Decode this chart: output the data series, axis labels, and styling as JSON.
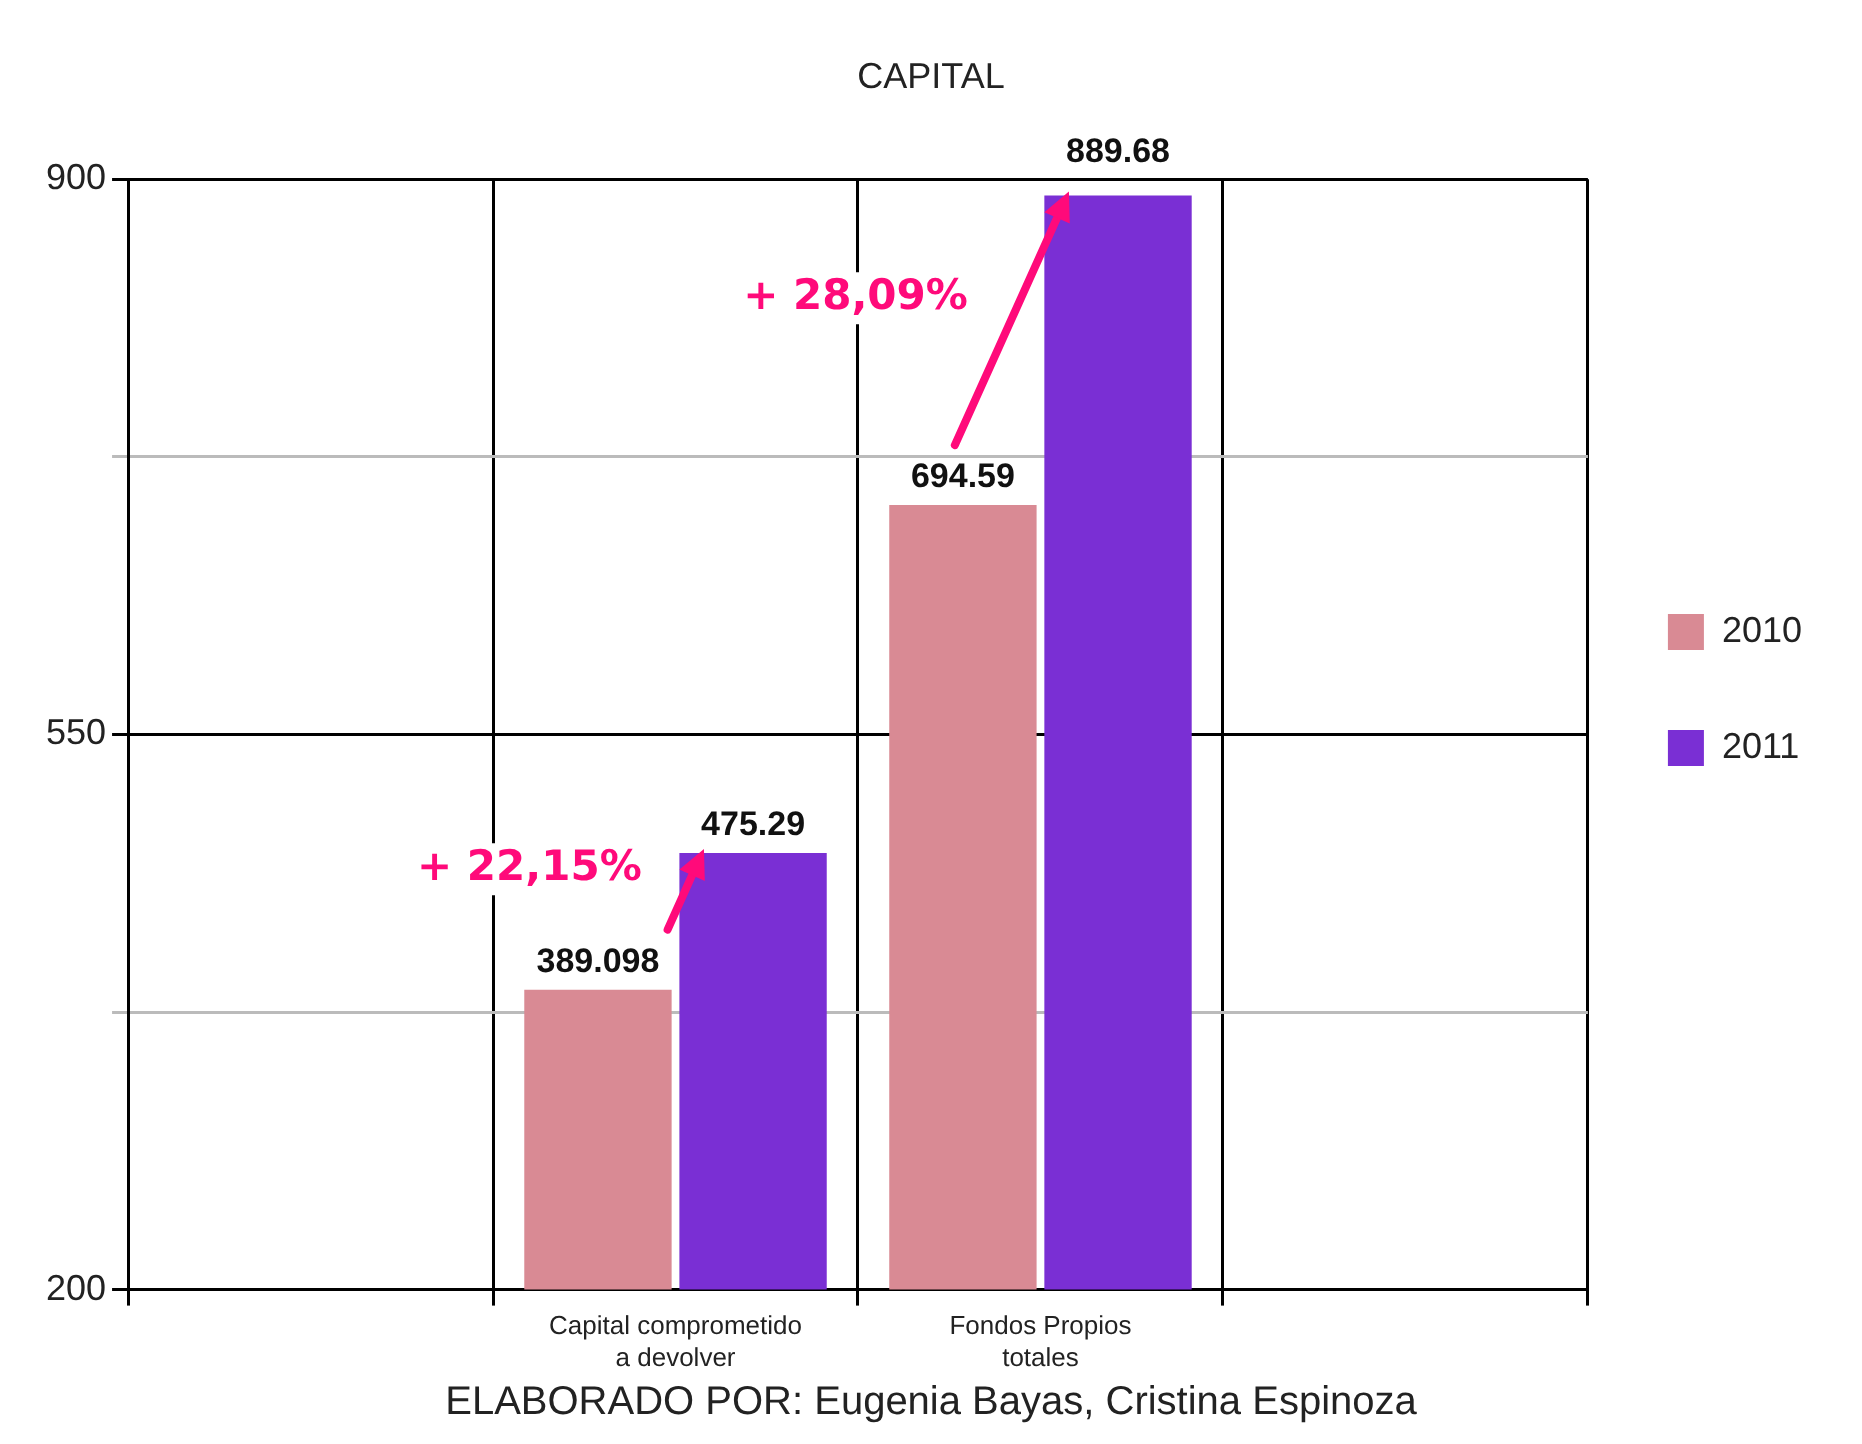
{
  "chart_data": {
    "type": "bar",
    "title": "CAPITAL",
    "categories": [
      null,
      "Capital comprometido a devolver",
      "Fondos Propios totales",
      null
    ],
    "series": [
      {
        "name": "2010",
        "color": "#d98a94",
        "values": [
          null,
          389.098,
          694.59,
          null
        ]
      },
      {
        "name": "2011",
        "color": "#7a2fd4",
        "values": [
          null,
          475.29,
          889.68,
          null
        ]
      }
    ],
    "ylim": [
      200,
      900
    ],
    "yticks": [
      200,
      {
        "value": 375,
        "label": null
      },
      550,
      {
        "value": 725,
        "label": null
      },
      900
    ],
    "grid": true,
    "legend": "right",
    "data_labels": true,
    "annotations": [
      {
        "text": "+ 22,15%",
        "x": "Capital comprometido a devolver",
        "y": 475.29
      },
      {
        "text": "+ 28,09%",
        "x": "Fondos Propios totales",
        "y": 889.68
      },
      "ELABORADO POR: Eugenia Bayas, Cristina Espinoza"
    ]
  }
}
